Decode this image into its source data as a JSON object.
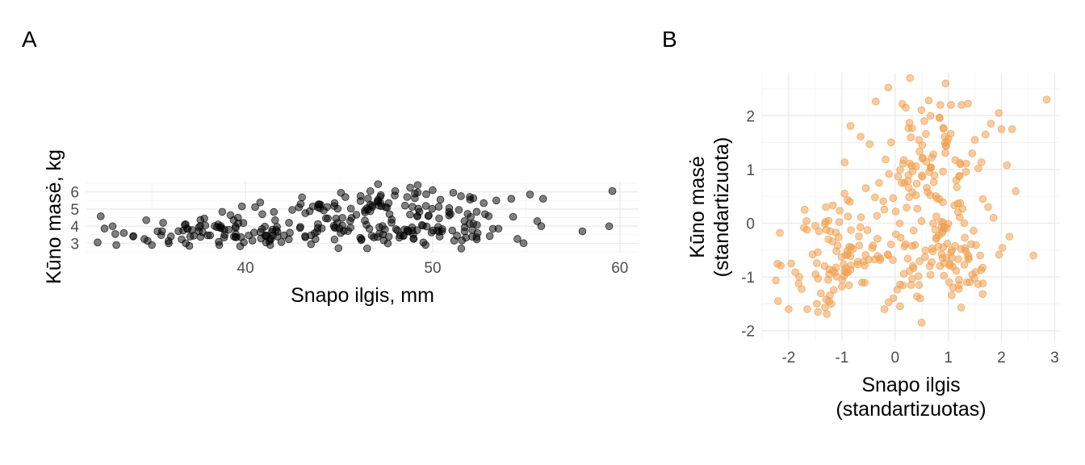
{
  "chart_data": [
    {
      "panel": "A",
      "type": "scatter",
      "xlabel": "Snapo ilgis, mm",
      "ylabel": "Kūno masė, kg",
      "xlim": [
        31.5,
        61
      ],
      "ylim": [
        2.5,
        6.6
      ],
      "x_ticks": [
        40,
        50,
        60
      ],
      "y_ticks": [
        3,
        4,
        5,
        6
      ],
      "grid": true,
      "point_color": "#000000",
      "point_opacity": 0.5,
      "cluster_summary": [
        {
          "x_center": 38.8,
          "y_center": 3.7,
          "x_sd": 2.7,
          "y_sd": 0.45
        },
        {
          "x_center": 48.8,
          "y_center": 3.7,
          "x_sd": 3.3,
          "y_sd": 0.38
        },
        {
          "x_center": 47.5,
          "y_center": 5.1,
          "x_sd": 3.1,
          "y_sd": 0.5
        }
      ],
      "points": [
        {
          "x": 32.1,
          "y": 3.05
        },
        {
          "x": 33.1,
          "y": 2.9
        },
        {
          "x": 33.5,
          "y": 3.6
        },
        {
          "x": 34.0,
          "y": 3.4
        },
        {
          "x": 34.6,
          "y": 3.25
        },
        {
          "x": 34.7,
          "y": 4.35
        },
        {
          "x": 35.0,
          "y": 2.9
        },
        {
          "x": 35.3,
          "y": 3.7
        },
        {
          "x": 35.6,
          "y": 4.2
        },
        {
          "x": 35.9,
          "y": 3.0
        },
        {
          "x": 37.0,
          "y": 2.85
        },
        {
          "x": 37.8,
          "y": 4.45
        },
        {
          "x": 38.6,
          "y": 2.9
        },
        {
          "x": 39.2,
          "y": 4.65
        },
        {
          "x": 39.6,
          "y": 4.5
        },
        {
          "x": 40.9,
          "y": 4.7
        },
        {
          "x": 41.1,
          "y": 3.05
        },
        {
          "x": 42.5,
          "y": 4.95
        },
        {
          "x": 43.2,
          "y": 3.35
        },
        {
          "x": 43.5,
          "y": 2.95
        },
        {
          "x": 43.6,
          "y": 5.15
        },
        {
          "x": 44.4,
          "y": 4.45
        },
        {
          "x": 45.1,
          "y": 5.95
        },
        {
          "x": 46.2,
          "y": 3.25
        },
        {
          "x": 46.5,
          "y": 2.7
        },
        {
          "x": 48.0,
          "y": 6.05
        },
        {
          "x": 48.8,
          "y": 6.25
        },
        {
          "x": 49.2,
          "y": 6.4
        },
        {
          "x": 49.5,
          "y": 3.05
        },
        {
          "x": 50.0,
          "y": 6.1
        },
        {
          "x": 51.1,
          "y": 5.95
        },
        {
          "x": 51.3,
          "y": 3.45
        },
        {
          "x": 51.4,
          "y": 4.95
        },
        {
          "x": 52.0,
          "y": 5.55
        },
        {
          "x": 52.4,
          "y": 3.6
        },
        {
          "x": 52.8,
          "y": 4.7
        },
        {
          "x": 53.4,
          "y": 5.5
        },
        {
          "x": 54.2,
          "y": 5.6
        },
        {
          "x": 54.3,
          "y": 4.55
        },
        {
          "x": 55.2,
          "y": 5.85
        },
        {
          "x": 55.8,
          "y": 4.0
        },
        {
          "x": 55.9,
          "y": 5.6
        },
        {
          "x": 58.0,
          "y": 3.7
        },
        {
          "x": 59.6,
          "y": 6.05
        }
      ]
    },
    {
      "panel": "B",
      "type": "scatter",
      "xlabel": "Snapo ilgis\n(standartizuotas)",
      "ylabel": "Kūno masė\n(standartizuota)",
      "xlim": [
        -2.5,
        3.1
      ],
      "ylim": [
        -2.2,
        2.8
      ],
      "x_ticks": [
        -2,
        -1,
        0,
        1,
        2,
        3
      ],
      "y_ticks": [
        -2,
        -1,
        0,
        1,
        2
      ],
      "grid": true,
      "point_color": "#f0a050",
      "point_opacity": 0.55,
      "cluster_summary": [
        {
          "x_center": -0.95,
          "y_center": -0.6,
          "x_sd": 0.5,
          "y_sd": 0.55
        },
        {
          "x_center": 0.9,
          "y_center": -0.6,
          "x_sd": 0.6,
          "y_sd": 0.45
        },
        {
          "x_center": 0.65,
          "y_center": 1.15,
          "x_sd": 0.55,
          "y_sd": 0.62
        }
      ],
      "points": [
        {
          "x": -2.2,
          "y": -1.45
        },
        {
          "x": -2.0,
          "y": -1.6
        },
        {
          "x": -1.95,
          "y": -0.75
        },
        {
          "x": -1.8,
          "y": -1.0
        },
        {
          "x": -1.7,
          "y": 0.25
        },
        {
          "x": -1.65,
          "y": -1.6
        },
        {
          "x": -1.5,
          "y": -0.05
        },
        {
          "x": -1.45,
          "y": -1.65
        },
        {
          "x": -1.3,
          "y": 0.3
        },
        {
          "x": -1.2,
          "y": -1.5
        },
        {
          "x": -0.95,
          "y": 0.55
        },
        {
          "x": -0.85,
          "y": 0.4
        },
        {
          "x": -0.55,
          "y": 0.65
        },
        {
          "x": -0.3,
          "y": 0.75
        },
        {
          "x": -0.2,
          "y": -1.6
        },
        {
          "x": 0.2,
          "y": 2.15
        },
        {
          "x": 0.3,
          "y": -1.15
        },
        {
          "x": 0.45,
          "y": -1.15
        },
        {
          "x": 0.5,
          "y": -1.85
        },
        {
          "x": 0.55,
          "y": 1.9
        },
        {
          "x": 0.85,
          "y": 2.2
        },
        {
          "x": 0.95,
          "y": 2.6
        },
        {
          "x": 1.05,
          "y": 2.2
        },
        {
          "x": 1.2,
          "y": -1.15
        },
        {
          "x": 1.25,
          "y": 2.2
        },
        {
          "x": 1.3,
          "y": 0.0
        },
        {
          "x": 1.35,
          "y": -1.1
        },
        {
          "x": 1.45,
          "y": 1.3
        },
        {
          "x": 1.5,
          "y": 1.55
        },
        {
          "x": 1.6,
          "y": -0.6
        },
        {
          "x": 1.65,
          "y": 0.45
        },
        {
          "x": 1.7,
          "y": 1.65
        },
        {
          "x": 1.75,
          "y": 0.3
        },
        {
          "x": 1.8,
          "y": 1.85
        },
        {
          "x": 1.85,
          "y": 0.1
        },
        {
          "x": 1.95,
          "y": 2.05
        },
        {
          "x": 2.0,
          "y": 1.75
        },
        {
          "x": 2.15,
          "y": -0.25
        },
        {
          "x": 2.2,
          "y": 1.75
        },
        {
          "x": 2.6,
          "y": -0.6
        },
        {
          "x": 2.85,
          "y": 2.3
        }
      ]
    }
  ]
}
